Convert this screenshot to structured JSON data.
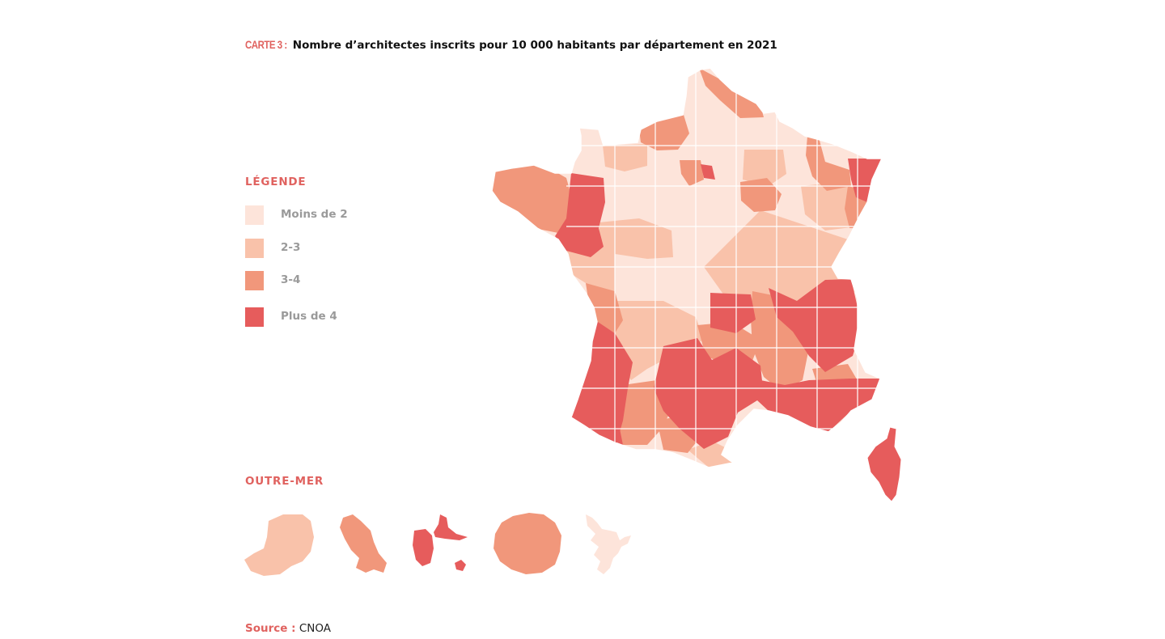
{
  "title": {
    "prefix": "CARTE 3 :",
    "text": "Nombre d’architectes inscrits pour 10 000 habitants par département en 2021"
  },
  "legend": {
    "heading": "LÉGENDE",
    "items": [
      {
        "label": "Moins de 2",
        "color": "#fde4da"
      },
      {
        "label": "2-3",
        "color": "#f9c2aa"
      },
      {
        "label": "3-4",
        "color": "#f1977b"
      },
      {
        "label": "Plus de 4",
        "color": "#e65c5c"
      }
    ]
  },
  "overseas": {
    "heading": "OUTRE-MER",
    "territories": [
      {
        "name": "Guyane",
        "class": "2-3"
      },
      {
        "name": "Martinique",
        "class": "3-4"
      },
      {
        "name": "Guadeloupe",
        "class": "Plus de 4"
      },
      {
        "name": "La Réunion",
        "class": "3-4"
      },
      {
        "name": "Mayotte",
        "class": "Moins de 2"
      }
    ]
  },
  "source": {
    "label": "Source :",
    "value": "CNOA"
  },
  "colors": {
    "accent": "#e0625f",
    "border": "#ffffff"
  }
}
